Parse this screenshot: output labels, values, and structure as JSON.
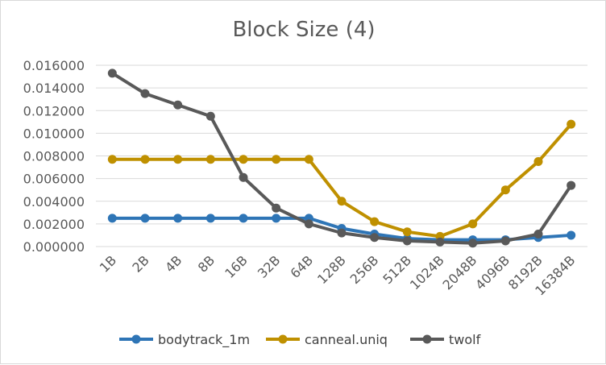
{
  "chart_data": {
    "type": "line",
    "title": "Block Size (4)",
    "xlabel": "",
    "ylabel": "",
    "categories": [
      "1B",
      "2B",
      "4B",
      "8B",
      "16B",
      "32B",
      "64B",
      "128B",
      "256B",
      "512B",
      "1024B",
      "2048B",
      "4096B",
      "8192B",
      "16384B"
    ],
    "ylim": [
      0,
      0.016
    ],
    "yticks": [
      "0.000000",
      "0.002000",
      "0.004000",
      "0.006000",
      "0.008000",
      "0.010000",
      "0.012000",
      "0.014000",
      "0.016000"
    ],
    "grid": true,
    "legend_position": "bottom",
    "series": [
      {
        "name": "bodytrack_1m",
        "color": "#2e75b6",
        "values": [
          0.0025,
          0.0025,
          0.0025,
          0.0025,
          0.0025,
          0.0025,
          0.0025,
          0.0016,
          0.0011,
          0.0007,
          0.0006,
          0.0006,
          0.0006,
          0.0008,
          0.001
        ]
      },
      {
        "name": "canneal.uniq",
        "color": "#bf9000",
        "values": [
          0.0077,
          0.0077,
          0.0077,
          0.0077,
          0.0077,
          0.0077,
          0.0077,
          0.004,
          0.0022,
          0.0013,
          0.0009,
          0.002,
          0.005,
          0.0075,
          0.0108
        ]
      },
      {
        "name": "twolf",
        "color": "#595959",
        "values": [
          0.0153,
          0.0135,
          0.0125,
          0.0115,
          0.0061,
          0.0034,
          0.002,
          0.0012,
          0.0008,
          0.0005,
          0.0004,
          0.0003,
          0.0005,
          0.0011,
          0.0054
        ]
      }
    ]
  }
}
